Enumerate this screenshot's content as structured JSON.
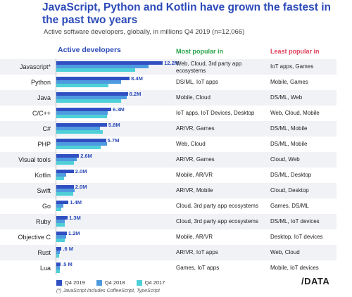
{
  "title": "JavaScript, Python and Kotlin have grown the fastest in the past two years",
  "subtitle": "Active software developers, globally, in millions Q4 2019 (n=12,066)",
  "headers": {
    "active": "Active developers",
    "most": "Most popular in",
    "least": "Least popular in"
  },
  "colors": {
    "q4_2019": "#2f4fc2",
    "q4_2018": "#4f9be0",
    "q4_2017": "#4fd0d8",
    "title": "#2c4ab8",
    "most": "#27a348",
    "least": "#e0405a"
  },
  "chart_data": {
    "type": "bar",
    "orientation": "horizontal",
    "xlim": [
      0,
      14
    ],
    "categories": [
      "Javascript*",
      "Python",
      "Java",
      "C/C++",
      "C#",
      "PHP",
      "Visual tools",
      "Kotlin",
      "Swift",
      "Go",
      "Ruby",
      "Objective C",
      "Rust",
      "Lua"
    ],
    "series": [
      {
        "name": "Q4 2019",
        "values": [
          12.2,
          8.4,
          8.2,
          6.3,
          5.8,
          5.7,
          2.6,
          2.0,
          2.0,
          1.4,
          1.3,
          1.2,
          0.6,
          0.5
        ]
      },
      {
        "name": "Q4 2018",
        "values": [
          10.6,
          7.4,
          8.1,
          5.9,
          5.0,
          5.8,
          2.3,
          1.1,
          2.1,
          0.8,
          1.0,
          1.1,
          0.4,
          0.4
        ]
      },
      {
        "name": "Q4 2017",
        "values": [
          9.0,
          6.0,
          7.4,
          5.8,
          5.3,
          5.1,
          2.0,
          0.9,
          1.9,
          0.6,
          1.0,
          1.0,
          0.3,
          0.4
        ]
      }
    ],
    "value_labels": [
      "12.2M",
      "8.4M",
      "8.2M",
      "6.3M",
      "5.8M",
      "5.7M",
      "2.6M",
      "2.0M",
      "2.0M",
      "1.4M",
      "1.3M",
      "1.2M",
      ".6 M",
      ".5 M"
    ],
    "most_popular_in": [
      "Web, Cloud, 3rd party app ecosystems",
      "DS/ML, IoT apps",
      "Mobile, Cloud",
      "IoT apps, IoT Devices, Desktop",
      "AR/VR, Games",
      "Web, Cloud",
      "AR/VR, Games",
      "Mobile, AR/VR",
      "AR/VR, Mobile",
      "Cloud, 3rd party app ecosystems",
      "Cloud, 3rd party app ecosystems",
      "Mobile, AR/VR",
      "AR/VR, IoT apps",
      "Games, IoT apps"
    ],
    "least_popular_in": [
      "IoT apps, Games",
      "Mobile, Games",
      "DS/ML, Web",
      "Web, Cloud, Mobile",
      "DS/ML, Mobile",
      "DS/ML, Mobile",
      "Cloud, Web",
      "DS/ML, Desktop",
      "Cloud, Desktop",
      "Games, DS/ML",
      "DS/ML, IoT devices",
      "Desktop, IoT devices",
      "Web, Cloud",
      "Mobile, IoT devices"
    ]
  },
  "legend": [
    "Q4 2019",
    "Q4 2018",
    "Q4 2017"
  ],
  "footnote": "(*) JavaScript includes CoffeeScript, TypeScript",
  "logo": "/DATA"
}
